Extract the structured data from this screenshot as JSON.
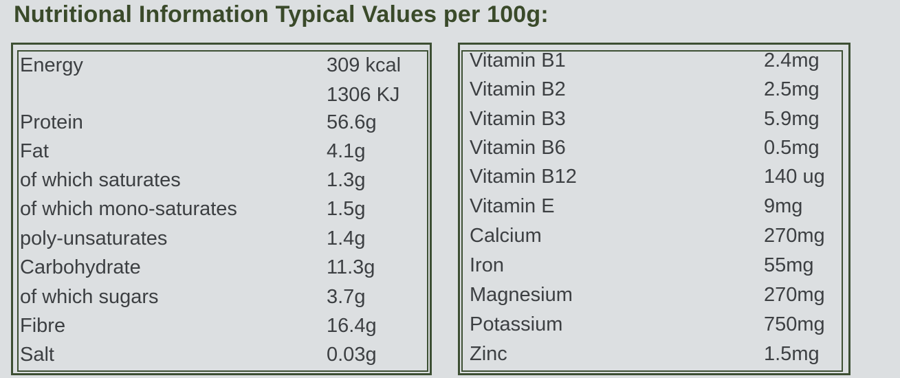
{
  "title": "Nutritional Information Typical Values per 100g:",
  "left_table": [
    {
      "label": "Energy",
      "value": "309 kcal"
    },
    {
      "label": "",
      "value": "1306 KJ"
    },
    {
      "label": "Protein",
      "value": "56.6g"
    },
    {
      "label": "Fat",
      "value": "4.1g"
    },
    {
      "label": "of which saturates",
      "value": "1.3g"
    },
    {
      "label": "of which mono-saturates",
      "value": "1.5g"
    },
    {
      "label": "poly-unsaturates",
      "value": "1.4g"
    },
    {
      "label": "Carbohydrate",
      "value": "11.3g"
    },
    {
      "label": "of which sugars",
      "value": "3.7g"
    },
    {
      "label": "Fibre",
      "value": "16.4g"
    },
    {
      "label": "Salt",
      "value": "0.03g"
    }
  ],
  "right_table": [
    {
      "label": "Vitamin B1",
      "value": "2.4mg"
    },
    {
      "label": "Vitamin B2",
      "value": "2.5mg"
    },
    {
      "label": "Vitamin B3",
      "value": "5.9mg"
    },
    {
      "label": "Vitamin B6",
      "value": "0.5mg"
    },
    {
      "label": "Vitamin B12",
      "value": "140 ug"
    },
    {
      "label": "Vitamin E",
      "value": "9mg"
    },
    {
      "label": "Calcium",
      "value": "270mg"
    },
    {
      "label": "Iron",
      "value": "55mg"
    },
    {
      "label": "Magnesium",
      "value": "270mg"
    },
    {
      "label": "Potassium",
      "value": "750mg"
    },
    {
      "label": "Zinc",
      "value": "1.5mg"
    }
  ]
}
